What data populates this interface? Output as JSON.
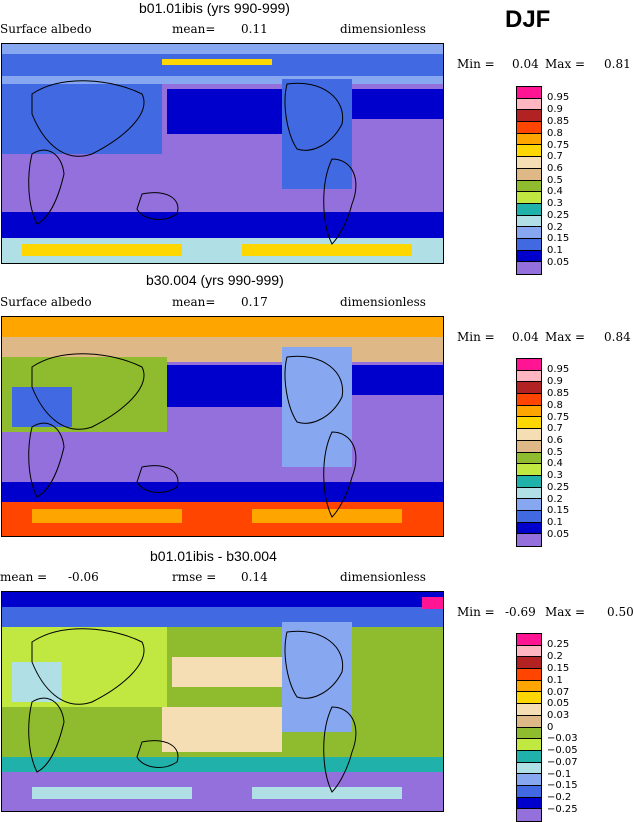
{
  "season": "DJF",
  "panels": [
    {
      "title": "b01.01ibis (yrs 990-999)",
      "left_label": "Surface albedo",
      "mid_label": "mean=",
      "mid_value": "0.11",
      "right_label": "dimensionless",
      "min_label": "Min =",
      "min_value": "0.04",
      "max_label": "Max =",
      "max_value": "0.81"
    },
    {
      "title": "b30.004 (yrs 990-999)",
      "left_label": "Surface albedo",
      "mid_label": "mean=",
      "mid_value": "0.17",
      "right_label": "dimensionless",
      "min_label": "Min =",
      "min_value": "0.04",
      "max_label": "Max =",
      "max_value": "0.84"
    },
    {
      "title": "b01.01ibis - b30.004",
      "left_label": "mean =",
      "left_value": "-0.06",
      "mid_label": "rmse =",
      "mid_value": "0.14",
      "right_label": "dimensionless",
      "min_label": "Min =",
      "min_value": "-0.69",
      "max_label": "Max =",
      "max_value": "0.50"
    }
  ],
  "chart_data": [
    {
      "type": "heatmap",
      "title": "b01.01ibis (yrs 990-999)",
      "variable": "Surface albedo",
      "units": "dimensionless",
      "mean": 0.11,
      "min": 0.04,
      "max": 0.81,
      "legend_levels": [
        "0.95",
        "0.9",
        "0.85",
        "0.8",
        "0.75",
        "0.7",
        "0.6",
        "0.5",
        "0.4",
        "0.3",
        "0.25",
        "0.2",
        "0.15",
        "0.1",
        "0.05"
      ],
      "legend_colors": [
        "#ff1493",
        "#ffb6c1",
        "#b22222",
        "#ff4500",
        "#ffa500",
        "#ffd700",
        "#f5deb3",
        "#deb887",
        "#8fbc2f",
        "#c0e840",
        "#20b2aa",
        "#b0e0e6",
        "#87a8f0",
        "#4169e1",
        "#0000cd",
        "#9370db"
      ]
    },
    {
      "type": "heatmap",
      "title": "b30.004 (yrs 990-999)",
      "variable": "Surface albedo",
      "units": "dimensionless",
      "mean": 0.17,
      "min": 0.04,
      "max": 0.84,
      "legend_levels": [
        "0.95",
        "0.9",
        "0.85",
        "0.8",
        "0.75",
        "0.7",
        "0.6",
        "0.5",
        "0.4",
        "0.3",
        "0.25",
        "0.2",
        "0.15",
        "0.1",
        "0.05"
      ],
      "legend_colors": [
        "#ff1493",
        "#ffb6c1",
        "#b22222",
        "#ff4500",
        "#ffa500",
        "#ffd700",
        "#f5deb3",
        "#deb887",
        "#8fbc2f",
        "#c0e840",
        "#20b2aa",
        "#b0e0e6",
        "#87a8f0",
        "#4169e1",
        "#0000cd",
        "#9370db"
      ]
    },
    {
      "type": "heatmap",
      "title": "b01.01ibis - b30.004",
      "units": "dimensionless",
      "mean": -0.06,
      "rmse": 0.14,
      "min": -0.69,
      "max": 0.5,
      "legend_levels": [
        "0.25",
        "0.2",
        "0.15",
        "0.1",
        "0.07",
        "0.05",
        "0.03",
        "0",
        "−0.03",
        "−0.05",
        "−0.07",
        "−0.1",
        "−0.15",
        "−0.2",
        "−0.25"
      ],
      "legend_colors": [
        "#ff1493",
        "#ffb6c1",
        "#b22222",
        "#ff4500",
        "#ffa500",
        "#ffd700",
        "#f5deb3",
        "#deb887",
        "#8fbc2f",
        "#c0e840",
        "#20b2aa",
        "#b0e0e6",
        "#87a8f0",
        "#4169e1",
        "#0000cd",
        "#9370db"
      ]
    }
  ]
}
